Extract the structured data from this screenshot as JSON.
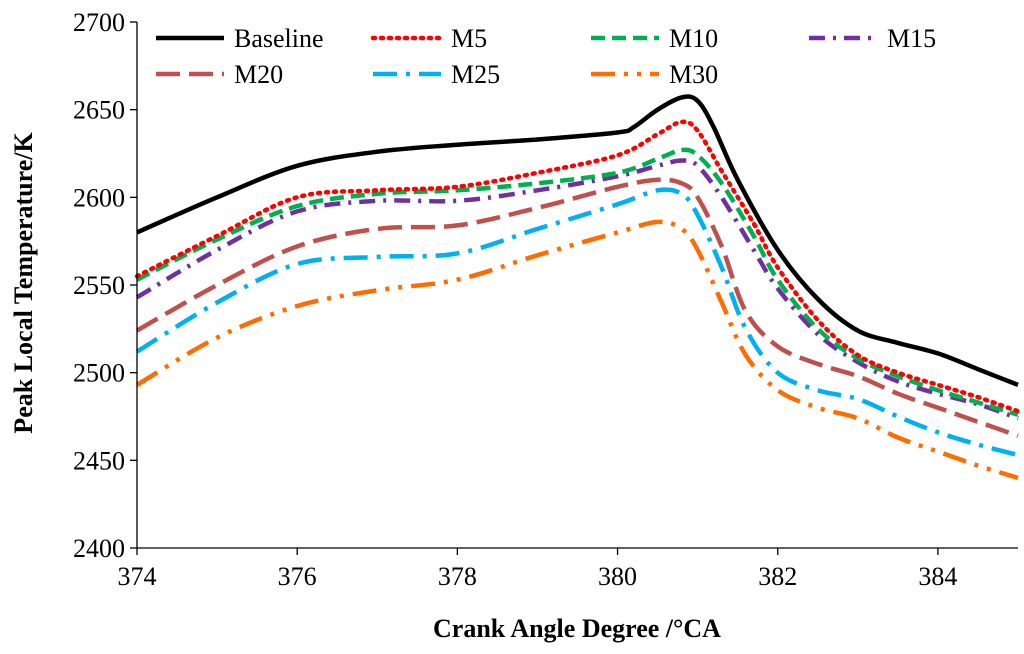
{
  "chart_data": {
    "type": "line",
    "title": "",
    "xlabel": "Crank Angle Degree /°CA",
    "ylabel": "Peak Local Temperature/K",
    "xlim": [
      374,
      385
    ],
    "ylim": [
      2400,
      2700
    ],
    "xticks": [
      374,
      376,
      378,
      380,
      382,
      384
    ],
    "yticks": [
      2400,
      2450,
      2500,
      2550,
      2600,
      2650,
      2700
    ],
    "grid": false,
    "legend_position": "top",
    "series": [
      {
        "name": "Baseline",
        "color": "#000000",
        "style": "solid",
        "x": [
          374,
          375,
          376,
          377,
          378,
          379,
          380,
          380.2,
          380.5,
          380.8,
          381.0,
          381.2,
          381.5,
          382,
          382.5,
          383,
          383.5,
          384,
          384.5,
          385
        ],
        "y": [
          2580,
          2600,
          2618,
          2626,
          2630,
          2633,
          2637,
          2640,
          2650,
          2657,
          2655,
          2640,
          2610,
          2570,
          2542,
          2524,
          2517,
          2511,
          2502,
          2493
        ]
      },
      {
        "name": "M5",
        "color": "#ff0000",
        "style": "dotted",
        "x": [
          374,
          375,
          376,
          377,
          378,
          379,
          380,
          380.5,
          380.8,
          381.0,
          381.3,
          381.7,
          382,
          382.5,
          383,
          383.5,
          384,
          384.5,
          385
        ],
        "y": [
          2555,
          2578,
          2600,
          2604,
          2606,
          2614,
          2624,
          2636,
          2643,
          2638,
          2615,
          2585,
          2560,
          2530,
          2510,
          2500,
          2493,
          2486,
          2478
        ]
      },
      {
        "name": "M10",
        "color": "#00b050",
        "style": "dashed",
        "x": [
          374,
          375,
          376,
          377,
          378,
          379,
          380,
          380.5,
          380.8,
          381.0,
          381.3,
          381.7,
          382,
          382.5,
          383,
          383.5,
          384,
          384.5,
          385
        ],
        "y": [
          2553,
          2576,
          2595,
          2602,
          2604,
          2608,
          2614,
          2622,
          2627,
          2624,
          2608,
          2578,
          2553,
          2525,
          2508,
          2498,
          2490,
          2483,
          2476
        ]
      },
      {
        "name": "M15",
        "color": "#7030a0",
        "style": "dashdot",
        "x": [
          374,
          375,
          376,
          377,
          378,
          379,
          380,
          380.5,
          380.8,
          381.0,
          381.3,
          381.7,
          382,
          382.5,
          383,
          383.5,
          384,
          384.5,
          385
        ],
        "y": [
          2543,
          2570,
          2592,
          2598,
          2598,
          2604,
          2612,
          2618,
          2621,
          2618,
          2600,
          2570,
          2548,
          2522,
          2506,
          2495,
          2488,
          2482,
          2474
        ]
      },
      {
        "name": "M20",
        "color": "#c0504d",
        "style": "longdash",
        "x": [
          374,
          375,
          376,
          377,
          378,
          379,
          380,
          380.5,
          380.8,
          381.0,
          381.3,
          381.6,
          382,
          382.5,
          383,
          383.5,
          384,
          384.5,
          385
        ],
        "y": [
          2524,
          2550,
          2572,
          2582,
          2584,
          2594,
          2606,
          2610,
          2608,
          2600,
          2572,
          2535,
          2515,
          2505,
          2498,
          2488,
          2480,
          2472,
          2464
        ]
      },
      {
        "name": "M25",
        "color": "#00b0f0",
        "style": "longdashdot",
        "x": [
          374,
          375,
          376,
          377,
          378,
          379,
          380,
          380.5,
          380.8,
          381.0,
          381.3,
          381.6,
          382,
          382.5,
          383,
          383.5,
          384,
          384.5,
          385
        ],
        "y": [
          2512,
          2540,
          2562,
          2566,
          2568,
          2582,
          2596,
          2604,
          2602,
          2590,
          2560,
          2525,
          2500,
          2490,
          2485,
          2475,
          2466,
          2459,
          2453
        ]
      },
      {
        "name": "M30",
        "color": "#ff6d00",
        "style": "longdashdotdot",
        "x": [
          374,
          375,
          376,
          377,
          378,
          379,
          380,
          380.5,
          380.8,
          381.0,
          381.3,
          381.6,
          382,
          382.5,
          383,
          383.5,
          384,
          384.5,
          385
        ],
        "y": [
          2493,
          2520,
          2538,
          2547,
          2553,
          2567,
          2580,
          2586,
          2582,
          2570,
          2540,
          2510,
          2490,
          2480,
          2474,
          2463,
          2455,
          2447,
          2440
        ]
      }
    ]
  }
}
